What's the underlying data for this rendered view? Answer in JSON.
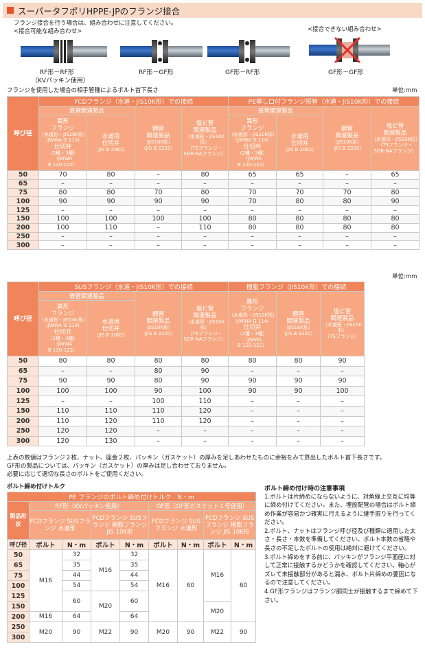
{
  "title": "スーパータフポリHPPE-JPのフランジ接合",
  "intro": "フランジ接合を行う場合は、組み合わせに注意してください。",
  "ok_label": "<接合可能な組み合わせ>",
  "ng_label": "<接合できない組み合わせ>",
  "diagrams": [
    {
      "caption": "RF形－RF形",
      "caption2": "（KVパッキン使用）"
    },
    {
      "caption": "RF形－GF形"
    },
    {
      "caption": "GF形－RF形"
    },
    {
      "caption": "GF形－GF形"
    }
  ],
  "table1": {
    "caption": "フランジを使用した場合の相手管種によるボルト首下長さ",
    "unit": "単位:mm",
    "group_a": "FCDフランジ（水道・JIS10K形）での接続",
    "group_b": "PE挿し口付フランジ短管（水道・JIS10K形）での接続",
    "sub_a": "鉄管関連製品",
    "sub_b": "鉄管関連製品",
    "rowhead": "呼び径",
    "cols": [
      {
        "l1": "異形",
        "l2": "フランジ",
        "l3": "（水道形・JIS10K形）",
        "l4": "（JWWA G 114）",
        "l5": "仕切弁",
        "l6": "（2種・3種）",
        "l7": "（JWWA",
        "l8": "B 120-122）"
      },
      {
        "l1": "水道用",
        "l2": "仕切弁",
        "l3": "（JIS B 2062）"
      },
      {
        "l1": "鋼管",
        "l2": "関連製品",
        "l3": "（JIS10K形）",
        "l4": "（JIS B 2220）"
      },
      {
        "l1": "塩ビ管",
        "l2": "関連製品",
        "l3": "（水道形・JIS10K形）",
        "l4": "（TSフランジ・",
        "l5": "SGR-NAフランジ）"
      },
      {
        "l1": "異形",
        "l2": "フランジ",
        "l3": "（水道形・JIS10K形）",
        "l4": "（JWWA G 114）",
        "l5": "仕切弁",
        "l6": "（2種・3種）",
        "l7": "（JWWA",
        "l8": "B 120-122）"
      },
      {
        "l1": "水道用",
        "l2": "仕切弁",
        "l3": "（JIS B 2062）"
      },
      {
        "l1": "鋼管",
        "l2": "関連製品",
        "l3": "（JIS10K形）",
        "l4": "（JIS B 2220）"
      },
      {
        "l1": "塩ビ管",
        "l2": "関連製品",
        "l3": "（水道形・JIS10K形）",
        "l4": "（TSフランジ・",
        "l5": "SGR-NAフランジ）"
      }
    ],
    "rows": [
      {
        "size": "50",
        "v": [
          "70",
          "80",
          "–",
          "80",
          "65",
          "65",
          "–",
          "65"
        ]
      },
      {
        "size": "65",
        "v": [
          "–",
          "–",
          "–",
          "–",
          "–",
          "–",
          "–",
          "–"
        ]
      },
      {
        "size": "75",
        "v": [
          "80",
          "80",
          "70",
          "80",
          "70",
          "70",
          "70",
          "80"
        ]
      },
      {
        "size": "100",
        "v": [
          "90",
          "90",
          "90",
          "90",
          "70",
          "80",
          "80",
          "90"
        ]
      },
      {
        "size": "125",
        "v": [
          "–",
          "–",
          "–",
          "–",
          "–",
          "–",
          "–",
          "–"
        ]
      },
      {
        "size": "150",
        "v": [
          "100",
          "100",
          "100",
          "100",
          "80",
          "80",
          "80",
          "80"
        ]
      },
      {
        "size": "200",
        "v": [
          "100",
          "110",
          "–",
          "110",
          "80",
          "80",
          "80",
          "80"
        ]
      },
      {
        "size": "250",
        "v": [
          "–",
          "–",
          "–",
          "–",
          "–",
          "–",
          "–",
          "–"
        ]
      },
      {
        "size": "300",
        "v": [
          "–",
          "–",
          "–",
          "–",
          "–",
          "–",
          "–",
          "–"
        ]
      }
    ]
  },
  "table2": {
    "unit": "単位:mm",
    "group_a": "SUSフランジ（水道・JIS10K形）での接続",
    "group_b": "樹脂フランジ（JIS10K形）での接続",
    "sub_a": "鉄管関連製品",
    "rowhead": "呼び径",
    "cols": [
      {
        "l1": "異形",
        "l2": "フランジ",
        "l3": "（水道形・JIS10K形）",
        "l4": "（JWWA G 114）",
        "l5": "仕切弁",
        "l6": "（2種・3種）",
        "l7": "（JWWA",
        "l8": "B 120-122）"
      },
      {
        "l1": "水道用",
        "l2": "仕切弁",
        "l3": "（JIS B 2062）"
      },
      {
        "l1": "鋼管",
        "l2": "関連製品",
        "l3": "（JIS10K形）",
        "l4": "（JIS B 2220）"
      },
      {
        "l1": "塩ビ管",
        "l2": "関連製品",
        "l3": "（水道形・JIS10K形）",
        "l4": "（TSフランジ・",
        "l5": "SGR-NAフランジ）"
      },
      {
        "l1": "異形",
        "l2": "フランジ",
        "l3": "（水道形・JIS10K形）",
        "l4": "（JWWA G 114）",
        "l5": "仕切弁",
        "l6": "（2種・3種）",
        "l7": "（JWWA",
        "l8": "B 120-122）"
      },
      {
        "l1": "鋼管",
        "l2": "関連製品",
        "l3": "（JIS10K形）",
        "l4": "（JIS B 2220）"
      },
      {
        "l1": "塩ビ管",
        "l2": "関連製品",
        "l3": "（水道形・JIS10K形）",
        "l4": "（TSフランジ）"
      }
    ],
    "rows": [
      {
        "size": "50",
        "v": [
          "80",
          "80",
          "80",
          "80",
          "80",
          "80",
          "90"
        ]
      },
      {
        "size": "65",
        "v": [
          "–",
          "–",
          "80",
          "90",
          "–",
          "–",
          "–"
        ]
      },
      {
        "size": "75",
        "v": [
          "90",
          "90",
          "80",
          "90",
          "90",
          "90",
          "90"
        ]
      },
      {
        "size": "100",
        "v": [
          "100",
          "100",
          "90",
          "100",
          "90",
          "90",
          "100"
        ]
      },
      {
        "size": "125",
        "v": [
          "–",
          "–",
          "100",
          "110",
          "–",
          "–",
          "–"
        ]
      },
      {
        "size": "150",
        "v": [
          "110",
          "110",
          "110",
          "120",
          "–",
          "–",
          "–"
        ]
      },
      {
        "size": "200",
        "v": [
          "110",
          "120",
          "110",
          "120",
          "–",
          "–",
          "–"
        ]
      },
      {
        "size": "250",
        "v": [
          "120",
          "120",
          "–",
          "–",
          "–",
          "–",
          "–"
        ]
      },
      {
        "size": "300",
        "v": [
          "120",
          "130",
          "–",
          "–",
          "–",
          "–",
          "–"
        ]
      }
    ]
  },
  "notes": [
    "上表の数値はフランジ２枚、ナット、座金２枚、パッキン（ガスケット）の厚みを足しあわせたものに余裕をみて算出したボルト首下長さです。",
    "GF形の製品については、パッキン（ガスケット）の厚みは足し合わせておりません。",
    "必要に応じて適切な長さのボルトをご使用ください。"
  ],
  "torque": {
    "section_title": "ボルト締め付けトルク",
    "header": "PE フランジのボルト締め付けトルク　N・m",
    "rf": "RF形（KVパッキン使用）",
    "gf": "GF形（GF形ガスケット１号使用）",
    "prod_label": "製品形状",
    "p1": "FCDフランジ SUSフランジ 水道形",
    "p2": "FCDフランジ SUSフランジ 樹脂フランジ JIS 10K形",
    "p3": "FCDフランジ SUSフランジ 水道形",
    "p4": "FCDフランジ SUSフランジ 樹脂フランジ JIS 10K形",
    "rowhead": "呼び径",
    "bolt": "ボルト",
    "nm": "N・m",
    "sizes": [
      "50",
      "65",
      "75",
      "100",
      "125",
      "150",
      "200",
      "250",
      "300"
    ],
    "rf_a_nm": [
      "32",
      "35",
      "44",
      "54",
      "60",
      "",
      "64",
      "90",
      ""
    ],
    "rf_b_nm": [
      "32",
      "35",
      "44",
      "54",
      "60",
      "",
      "64",
      "90",
      ""
    ],
    "m16": "M16",
    "m20": "M20",
    "m22": "M22",
    "v60": "60",
    "v90": "90"
  },
  "caution": {
    "title": "ボルト締め付け時の注意事項",
    "items": [
      "1.ボルトは片締めにならないように、対角線上交互に均等に締め付けてください。また、埋設配管の場合はボルト締め作業が容易かつ確実に行えるように継手掘りを行ってください。",
      "2.ボルト、ナットはフランジ呼び径及び種類に適用した太さ・長さ・本数を準備してください。ボルト本数の省略や長さの不足したボルトの使用は絶対に避けてください。",
      "3.ボルト締めをする前に、パッキンがフランジ平面座に対して正常に接触するかどうかを確認してください。軸心がズレて未接触部分があると漏水、ボルト片締めの要因になるので注意してください。",
      "4.GF形フランジはフランジ胴同士が接触するまで締めて下さい。"
    ]
  }
}
